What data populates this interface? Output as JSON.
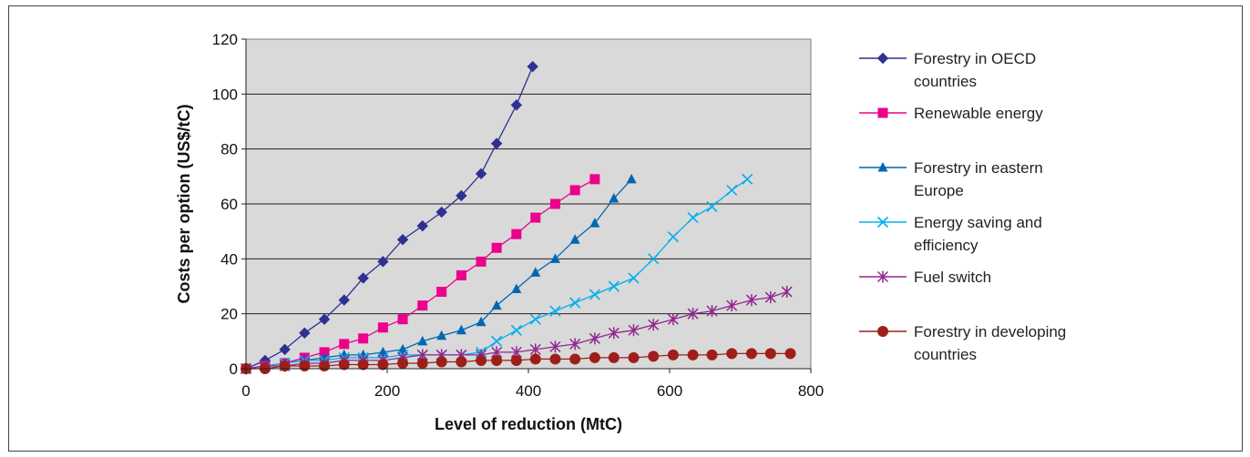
{
  "chart_data": {
    "type": "line",
    "xlabel": "Level of reduction (MtC)",
    "ylabel": "Costs per option (US$/tC)",
    "xlim": [
      0,
      800
    ],
    "ylim": [
      0,
      120
    ],
    "xticks": [
      0,
      200,
      400,
      600,
      800
    ],
    "yticks": [
      0,
      20,
      40,
      60,
      80,
      100,
      120
    ],
    "grid": "horizontal",
    "legend_position": "right",
    "plot_background": "#d9d9d9",
    "series": [
      {
        "name": "Forestry in OECD countries",
        "legend_lines": [
          "Forestry in OECD",
          "countries"
        ],
        "color": "#2e3192",
        "marker": "diamond",
        "points": [
          [
            0,
            0
          ],
          [
            27,
            3
          ],
          [
            55,
            7
          ],
          [
            83,
            13
          ],
          [
            111,
            18
          ],
          [
            139,
            25
          ],
          [
            166,
            33
          ],
          [
            194,
            39
          ],
          [
            222,
            47
          ],
          [
            250,
            52
          ],
          [
            277,
            57
          ],
          [
            305,
            63
          ],
          [
            333,
            71
          ],
          [
            355,
            82
          ],
          [
            383,
            96
          ],
          [
            406,
            110
          ]
        ]
      },
      {
        "name": "Renewable energy",
        "legend_lines": [
          "Renewable energy"
        ],
        "color": "#ec008c",
        "marker": "square",
        "points": [
          [
            0,
            0
          ],
          [
            27,
            1
          ],
          [
            55,
            2
          ],
          [
            83,
            4
          ],
          [
            111,
            6
          ],
          [
            139,
            9
          ],
          [
            166,
            11
          ],
          [
            194,
            15
          ],
          [
            222,
            18
          ],
          [
            250,
            23
          ],
          [
            277,
            28
          ],
          [
            305,
            34
          ],
          [
            333,
            39
          ],
          [
            355,
            44
          ],
          [
            383,
            49
          ],
          [
            410,
            55
          ],
          [
            438,
            60
          ],
          [
            466,
            65
          ],
          [
            494,
            69
          ]
        ]
      },
      {
        "name": "Forestry in eastern Europe",
        "legend_lines": [
          "Forestry in eastern",
          "Europe"
        ],
        "color": "#0067b1",
        "marker": "triangle",
        "points": [
          [
            0,
            0
          ],
          [
            27,
            1
          ],
          [
            55,
            2
          ],
          [
            83,
            3
          ],
          [
            111,
            4
          ],
          [
            139,
            5
          ],
          [
            166,
            5
          ],
          [
            194,
            6
          ],
          [
            222,
            7
          ],
          [
            250,
            10
          ],
          [
            277,
            12
          ],
          [
            305,
            14
          ],
          [
            333,
            17
          ],
          [
            355,
            23
          ],
          [
            383,
            29
          ],
          [
            410,
            35
          ],
          [
            438,
            40
          ],
          [
            466,
            47
          ],
          [
            494,
            53
          ],
          [
            521,
            62
          ],
          [
            546,
            69
          ]
        ]
      },
      {
        "name": "Energy saving and efficiency",
        "legend_lines": [
          "Energy saving and",
          "efficiency"
        ],
        "color": "#00aeef",
        "marker": "cross",
        "points": [
          [
            0,
            0
          ],
          [
            27,
            1
          ],
          [
            55,
            2
          ],
          [
            83,
            3
          ],
          [
            111,
            3
          ],
          [
            139,
            4
          ],
          [
            166,
            4
          ],
          [
            194,
            4
          ],
          [
            222,
            5
          ],
          [
            250,
            5
          ],
          [
            277,
            5
          ],
          [
            305,
            5
          ],
          [
            333,
            6
          ],
          [
            355,
            10
          ],
          [
            383,
            14
          ],
          [
            410,
            18
          ],
          [
            438,
            21
          ],
          [
            466,
            24
          ],
          [
            494,
            27
          ],
          [
            521,
            30
          ],
          [
            549,
            33
          ],
          [
            577,
            40
          ],
          [
            605,
            48
          ],
          [
            633,
            55
          ],
          [
            660,
            59
          ],
          [
            688,
            65
          ],
          [
            710,
            69
          ]
        ]
      },
      {
        "name": "Fuel switch",
        "legend_lines": [
          "Fuel switch"
        ],
        "color": "#92278f",
        "marker": "asterisk",
        "points": [
          [
            0,
            0
          ],
          [
            27,
            1
          ],
          [
            55,
            1
          ],
          [
            83,
            2
          ],
          [
            111,
            2
          ],
          [
            139,
            3
          ],
          [
            166,
            3
          ],
          [
            194,
            3
          ],
          [
            222,
            4
          ],
          [
            250,
            5
          ],
          [
            277,
            5
          ],
          [
            305,
            5
          ],
          [
            333,
            5
          ],
          [
            355,
            6
          ],
          [
            383,
            6
          ],
          [
            410,
            7
          ],
          [
            438,
            8
          ],
          [
            466,
            9
          ],
          [
            494,
            11
          ],
          [
            521,
            13
          ],
          [
            549,
            14
          ],
          [
            577,
            16
          ],
          [
            605,
            18
          ],
          [
            633,
            20
          ],
          [
            660,
            21
          ],
          [
            688,
            23
          ],
          [
            716,
            25
          ],
          [
            743,
            26
          ],
          [
            766,
            28
          ]
        ]
      },
      {
        "name": "Forestry in developing countries",
        "legend_lines": [
          "Forestry in developing",
          "countries"
        ],
        "color": "#9e1f1a",
        "marker": "circle",
        "points": [
          [
            0,
            0
          ],
          [
            27,
            0
          ],
          [
            55,
            1
          ],
          [
            83,
            1
          ],
          [
            111,
            1
          ],
          [
            139,
            1.5
          ],
          [
            166,
            1.5
          ],
          [
            194,
            1.5
          ],
          [
            222,
            2
          ],
          [
            250,
            2
          ],
          [
            277,
            2.5
          ],
          [
            305,
            2.5
          ],
          [
            333,
            3
          ],
          [
            355,
            3
          ],
          [
            383,
            3
          ],
          [
            410,
            3.5
          ],
          [
            438,
            3.5
          ],
          [
            466,
            3.5
          ],
          [
            494,
            4
          ],
          [
            521,
            4
          ],
          [
            549,
            4
          ],
          [
            577,
            4.5
          ],
          [
            605,
            5
          ],
          [
            633,
            5
          ],
          [
            660,
            5
          ],
          [
            688,
            5.5
          ],
          [
            716,
            5.5
          ],
          [
            743,
            5.5
          ],
          [
            771,
            5.5
          ]
        ]
      }
    ]
  }
}
